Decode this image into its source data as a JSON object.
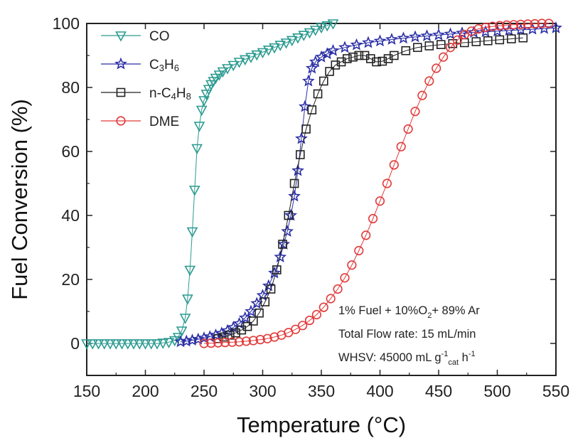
{
  "chart_data": {
    "type": "scatter",
    "title": "",
    "xlabel": "Temperature (°C)",
    "ylabel": "Fuel Conversion (%)",
    "xlim": [
      150,
      550
    ],
    "ylim": [
      -10,
      100
    ],
    "xticks": [
      150,
      200,
      250,
      300,
      350,
      400,
      450,
      500,
      550
    ],
    "yticks": [
      0,
      20,
      40,
      60,
      80,
      100
    ],
    "grid": false,
    "legend_position": "top-left",
    "series": [
      {
        "name": "CO",
        "marker": "triangle-down",
        "color": "#2a9a90",
        "x": [
          150,
          155,
          160,
          165,
          170,
          175,
          180,
          185,
          190,
          195,
          200,
          205,
          210,
          215,
          220,
          225,
          228,
          231,
          234,
          236,
          238,
          240,
          242,
          244,
          246,
          248,
          250,
          252,
          254,
          256,
          258,
          260,
          263,
          266,
          270,
          275,
          280,
          285,
          290,
          295,
          300,
          305,
          310,
          315,
          320,
          325,
          330,
          335,
          340,
          345,
          350,
          355,
          360
        ],
        "y": [
          0,
          0,
          0,
          0,
          0,
          0,
          0,
          0,
          0,
          0,
          0,
          0,
          0,
          0.2,
          0.4,
          1,
          2,
          4,
          8,
          14,
          23,
          35,
          48,
          61,
          68,
          73,
          76,
          78,
          79.5,
          81,
          82,
          83,
          84,
          85,
          86,
          87,
          88,
          88.8,
          89.5,
          90.3,
          91,
          91.8,
          92.5,
          93.3,
          94,
          94.8,
          95.6,
          96.4,
          97.2,
          98,
          98.8,
          99.4,
          100
        ]
      },
      {
        "name": "C3H6",
        "marker": "star",
        "color": "#2b2fa6",
        "x": [
          230,
          235,
          240,
          245,
          250,
          255,
          260,
          265,
          270,
          275,
          280,
          285,
          290,
          295,
          300,
          305,
          310,
          315,
          318,
          321,
          324,
          327,
          330,
          333,
          336,
          339,
          342,
          345,
          350,
          355,
          360,
          370,
          380,
          390,
          400,
          410,
          420,
          430,
          440,
          450,
          460,
          470,
          480,
          490,
          500,
          510,
          520,
          530,
          540,
          550
        ],
        "y": [
          0.5,
          0.7,
          1,
          1.3,
          1.7,
          2.1,
          2.6,
          3.2,
          4,
          5,
          6.2,
          8,
          10,
          12.5,
          15,
          18,
          22,
          27,
          31,
          35,
          40,
          46,
          54,
          64,
          74,
          82,
          86,
          88,
          89.5,
          90.5,
          91.5,
          92.5,
          93.3,
          94,
          94.5,
          95,
          95.4,
          95.8,
          96.1,
          96.4,
          96.7,
          97,
          97.2,
          97.4,
          97.6,
          97.8,
          98,
          98.2,
          98.4,
          98.6
        ]
      },
      {
        "name": "n-C4H8",
        "marker": "square",
        "color": "#222222",
        "x": [
          262,
          267,
          272,
          277,
          282,
          287,
          292,
          297,
          302,
          307,
          312,
          317,
          322,
          327,
          332,
          337,
          342,
          347,
          352,
          357,
          362,
          367,
          372,
          377,
          382,
          387,
          392,
          397,
          402,
          407,
          412,
          422,
          432,
          442,
          452,
          462,
          472,
          482,
          492,
          502,
          512,
          522
        ],
        "y": [
          1.5,
          2,
          2.6,
          3.3,
          4.2,
          5.3,
          7,
          9.5,
          13,
          17,
          23,
          31,
          40,
          50,
          59,
          67,
          73,
          78,
          82,
          85,
          87,
          88,
          89,
          89.5,
          90,
          90,
          89,
          88,
          88.2,
          89,
          90,
          91.5,
          92.5,
          93,
          93.4,
          93.7,
          94,
          94.3,
          94.6,
          94.9,
          95.2,
          95.5
        ]
      },
      {
        "name": "DME",
        "marker": "circle",
        "color": "#e23b3b",
        "x": [
          250,
          256,
          262,
          268,
          274,
          280,
          286,
          292,
          298,
          304,
          310,
          316,
          322,
          328,
          334,
          340,
          346,
          352,
          358,
          364,
          370,
          376,
          382,
          388,
          394,
          400,
          406,
          412,
          418,
          424,
          430,
          436,
          442,
          448,
          454,
          460,
          466,
          472,
          478,
          484,
          490,
          496,
          502,
          508,
          514,
          520,
          526,
          532,
          538,
          544
        ],
        "y": [
          0,
          0.1,
          0.2,
          0.3,
          0.4,
          0.5,
          0.7,
          0.9,
          1.2,
          1.5,
          2,
          2.6,
          3.4,
          4.4,
          5.6,
          7.2,
          9,
          11.3,
          14,
          17,
          20.5,
          24.5,
          29,
          33.8,
          39,
          44.5,
          50,
          55.8,
          61.5,
          67,
          72.5,
          77.5,
          82,
          86,
          89.5,
          92.5,
          94.8,
          96.5,
          97.6,
          98.3,
          98.8,
          99.1,
          99.3,
          99.5,
          99.6,
          99.7,
          99.8,
          99.9,
          100,
          100
        ]
      }
    ],
    "annotations": [
      {
        "segments": [
          [
            "1% Fuel + 10%O",
            "normal"
          ],
          [
            "2",
            "sub"
          ],
          [
            "+ 89% Ar",
            "normal"
          ]
        ]
      },
      {
        "segments": [
          [
            "Total Flow rate: 15 mL/min",
            "normal"
          ]
        ]
      },
      {
        "segments": [
          [
            "WHSV: 45000 mL g",
            "normal"
          ],
          [
            "-1",
            "sup"
          ],
          [
            "cat",
            "sub"
          ],
          [
            " h",
            "normal"
          ],
          [
            "-1",
            "sup"
          ]
        ]
      }
    ]
  },
  "legend_entries": [
    {
      "label": "CO",
      "sub": []
    },
    {
      "label_parts": [
        [
          "C",
          "normal"
        ],
        [
          "3",
          "sub"
        ],
        [
          "H",
          "normal"
        ],
        [
          "6",
          "sub"
        ]
      ]
    },
    {
      "label_parts": [
        [
          "n-C",
          "normal"
        ],
        [
          "4",
          "sub"
        ],
        [
          "H",
          "normal"
        ],
        [
          "8",
          "sub"
        ]
      ]
    },
    {
      "label": "DME"
    }
  ]
}
